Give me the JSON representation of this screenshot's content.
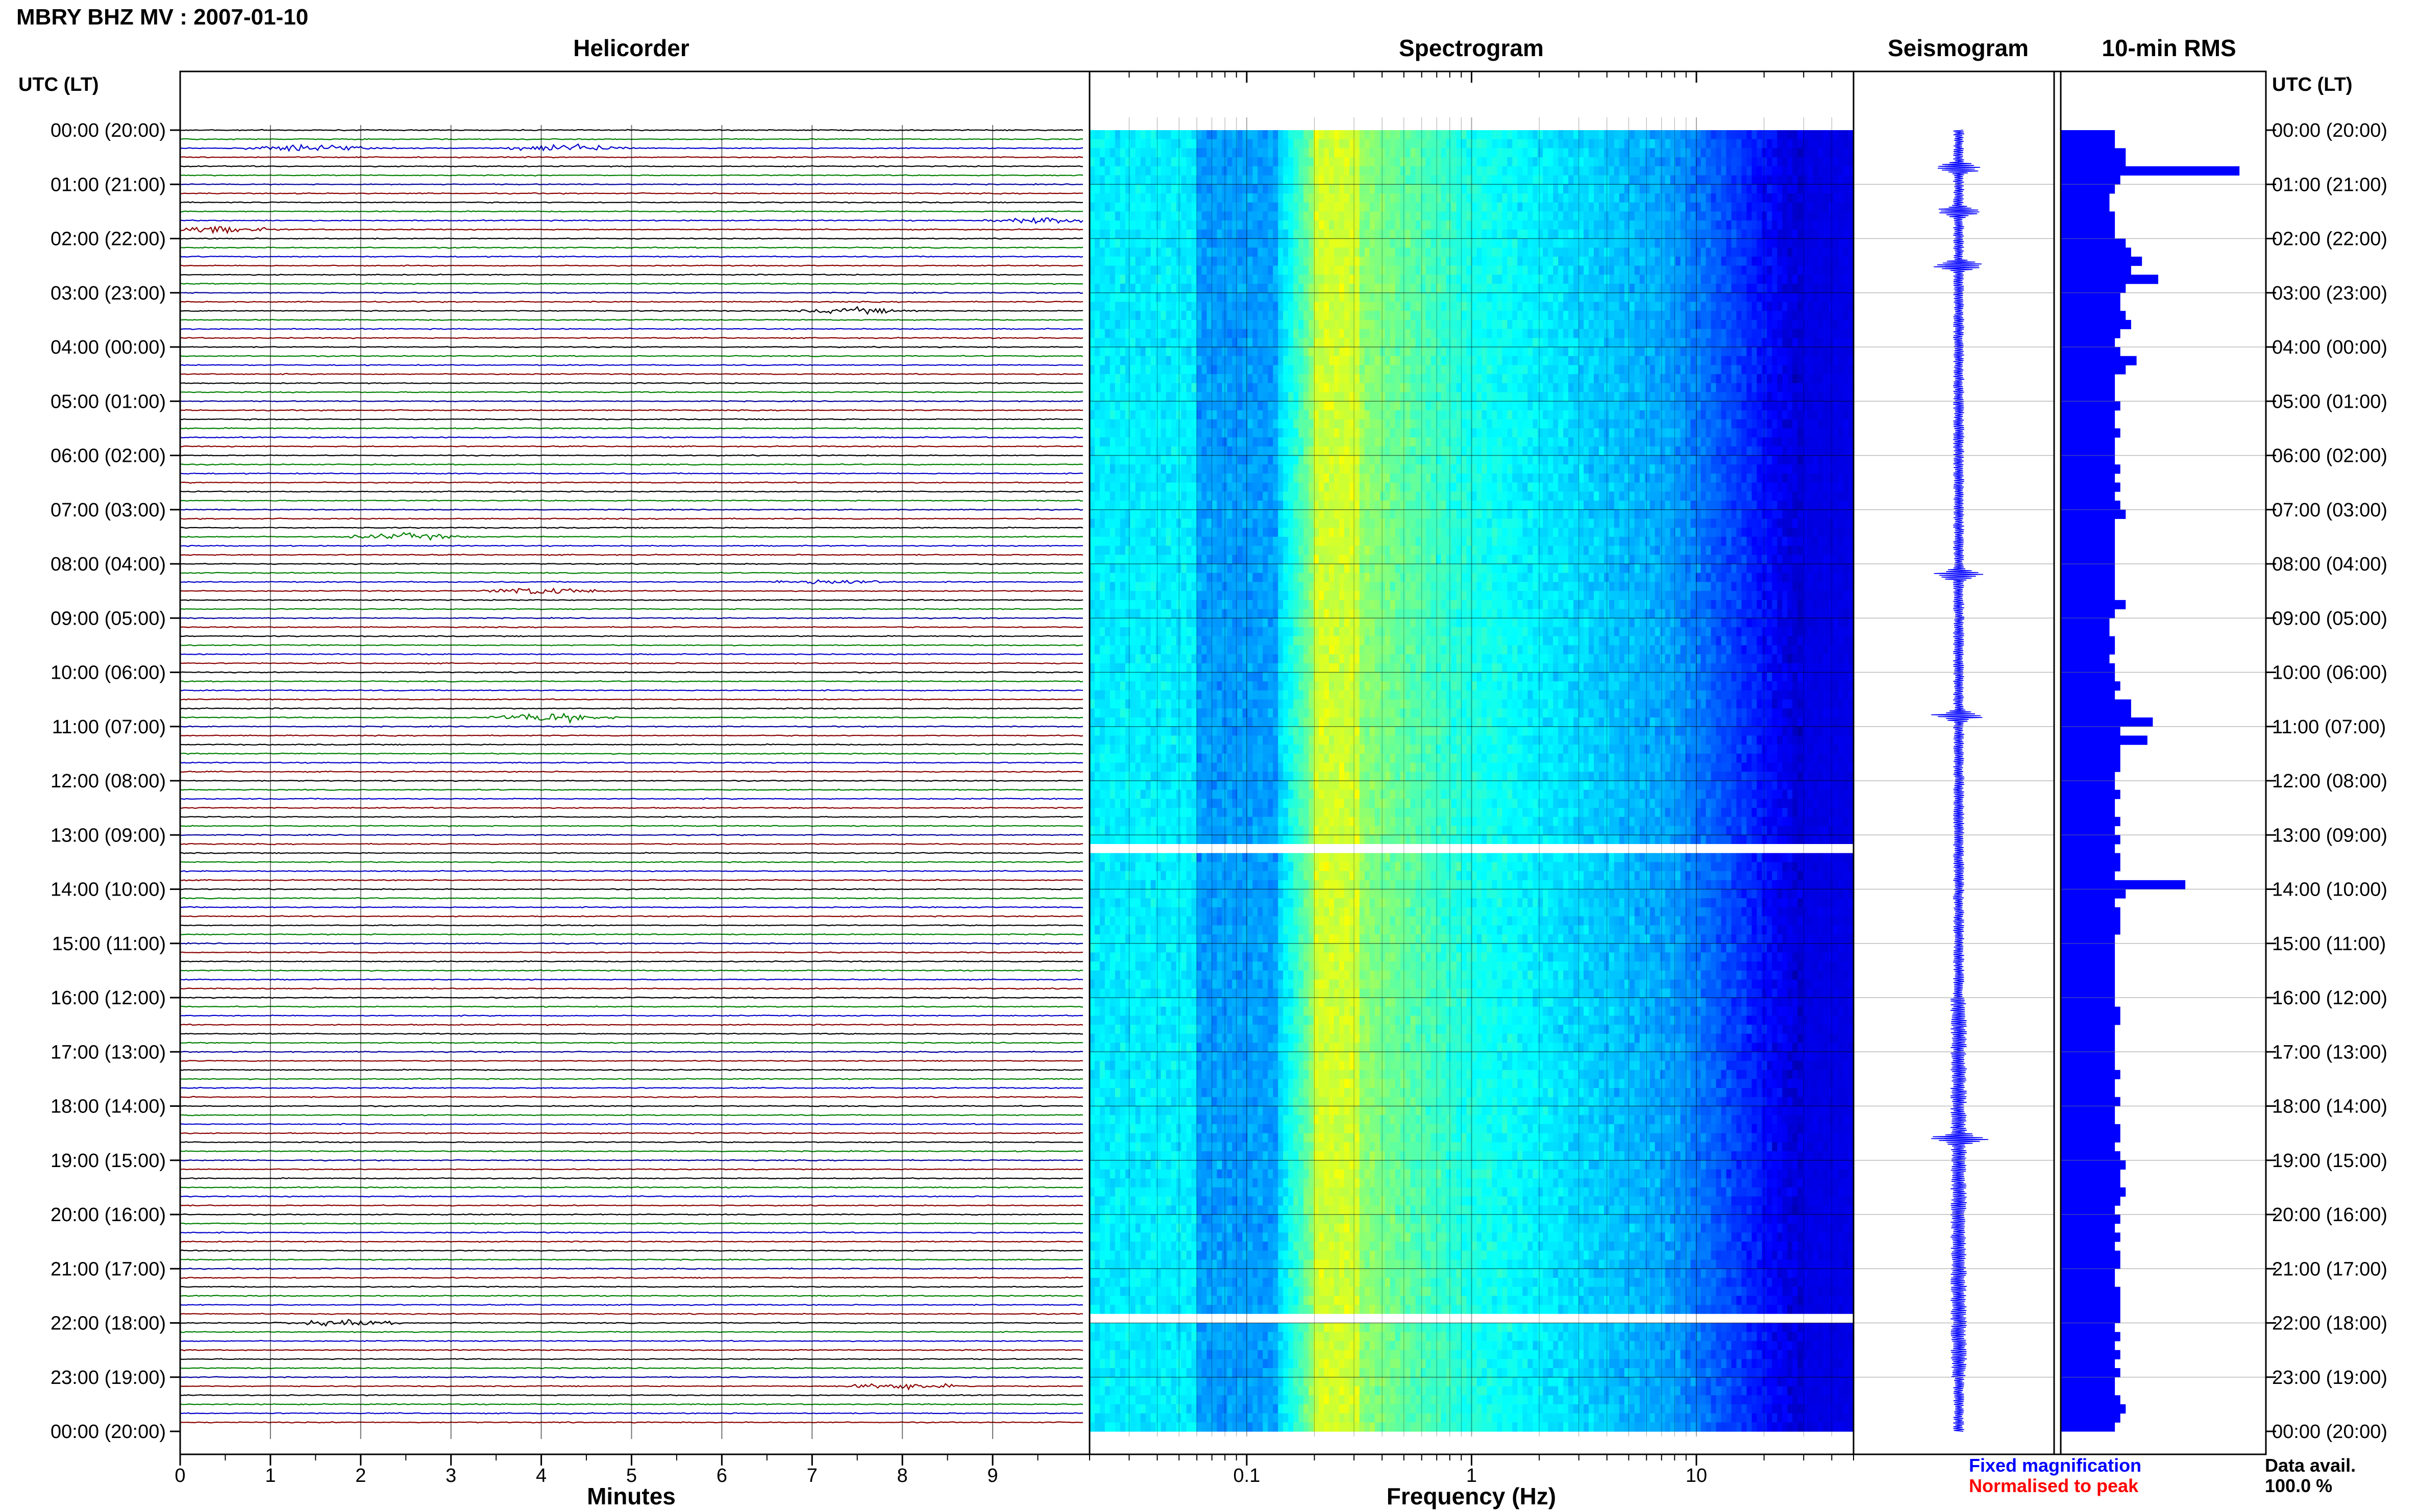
{
  "header": {
    "station_title": "MBRY BHZ MV : 2007-01-10",
    "time_axis_label": "UTC (LT)"
  },
  "panels": {
    "helicorder": "Helicorder",
    "spectrogram": "Spectrogram",
    "seismogram": "Seismogram",
    "rms": "10-min RMS"
  },
  "time_labels": [
    "00:00 (20:00)",
    "01:00 (21:00)",
    "02:00 (22:00)",
    "03:00 (23:00)",
    "04:00 (00:00)",
    "05:00 (01:00)",
    "06:00 (02:00)",
    "07:00 (03:00)",
    "08:00 (04:00)",
    "09:00 (05:00)",
    "10:00 (06:00)",
    "11:00 (07:00)",
    "12:00 (08:00)",
    "13:00 (09:00)",
    "14:00 (10:00)",
    "15:00 (11:00)",
    "16:00 (12:00)",
    "17:00 (13:00)",
    "18:00 (14:00)",
    "19:00 (15:00)",
    "20:00 (16:00)",
    "21:00 (17:00)",
    "22:00 (18:00)",
    "23:00 (19:00)",
    "00:00 (20:00)"
  ],
  "footer": {
    "fixed_label": "Fixed magnification",
    "normalised_label": "Normalised to peak",
    "data_avail_label": "Data avail.",
    "data_avail_value": "100.0 %"
  },
  "colors": {
    "trace_cycle": [
      "#000000",
      "#008000",
      "#0000cc",
      "#8b0000"
    ],
    "fixed": "#0000ff",
    "normalised": "#ff0000",
    "rms_bar": "#0000ff",
    "seismogram": "#0000ff"
  },
  "chart_data": [
    {
      "type": "helicorder",
      "title": "Helicorder",
      "xlabel": "Minutes",
      "x_ticks": [
        0,
        1,
        2,
        3,
        4,
        5,
        6,
        7,
        8,
        9
      ],
      "xlim": [
        0,
        10
      ],
      "lines_per_hour": 6,
      "total_lines": 144,
      "events": [
        {
          "hour": 0.33,
          "minute": 1.4,
          "amplitude": 3.2
        },
        {
          "hour": 0.33,
          "minute": 4.3,
          "amplitude": 3.5
        },
        {
          "hour": 1.83,
          "minute": 0.4,
          "amplitude": 2.6
        },
        {
          "hour": 1.67,
          "minute": 9.6,
          "amplitude": 2.4
        },
        {
          "hour": 3.33,
          "minute": 7.5,
          "amplitude": 2.2
        },
        {
          "hour": 7.5,
          "minute": 2.5,
          "amplitude": 2.6
        },
        {
          "hour": 8.33,
          "minute": 7.2,
          "amplitude": 2.2
        },
        {
          "hour": 8.5,
          "minute": 4.0,
          "amplitude": 3.0
        },
        {
          "hour": 10.83,
          "minute": 4.1,
          "amplitude": 3.8
        },
        {
          "hour": 22.0,
          "minute": 1.8,
          "amplitude": 2.3
        },
        {
          "hour": 23.17,
          "minute": 8.0,
          "amplitude": 2.6
        }
      ]
    },
    {
      "type": "heatmap",
      "title": "Spectrogram",
      "xlabel": "Frequency (Hz)",
      "x_scale": "log",
      "xlim": [
        0.02,
        50
      ],
      "x_tick_labels": [
        "0.1",
        "1",
        "10"
      ],
      "x_tick_values": [
        0.1,
        1,
        10
      ],
      "peak_band_hz": [
        0.2,
        0.3
      ],
      "data_gaps_hour": [
        13.2,
        21.8
      ]
    },
    {
      "type": "line",
      "title": "Seismogram",
      "events_hour": [
        0.7,
        1.5,
        2.5,
        8.2,
        10.8,
        18.6
      ]
    },
    {
      "type": "bar",
      "title": "10-min RMS",
      "orientation": "horizontal",
      "bin_minutes": 10,
      "values": [
        1.0,
        1.0,
        1.2,
        1.2,
        3.3,
        1.1,
        1.0,
        0.9,
        0.9,
        1.0,
        1.0,
        1.0,
        1.2,
        1.3,
        1.5,
        1.3,
        1.8,
        1.2,
        1.1,
        1.1,
        1.2,
        1.3,
        1.1,
        1.0,
        1.1,
        1.4,
        1.2,
        1.0,
        1.0,
        1.0,
        1.1,
        1.0,
        1.0,
        1.1,
        1.0,
        1.0,
        1.0,
        1.1,
        1.0,
        1.1,
        1.0,
        1.1,
        1.2,
        1.0,
        1.0,
        1.0,
        1.0,
        1.0,
        1.0,
        1.0,
        1.0,
        1.0,
        1.2,
        1.0,
        0.9,
        0.9,
        1.0,
        1.0,
        0.9,
        1.0,
        1.0,
        1.1,
        1.0,
        1.3,
        1.3,
        1.7,
        1.1,
        1.6,
        1.1,
        1.1,
        1.1,
        1.0,
        1.0,
        1.1,
        1.0,
        1.0,
        1.1,
        1.0,
        1.1,
        1.0,
        1.1,
        1.1,
        1.0,
        2.3,
        1.2,
        1.0,
        1.1,
        1.1,
        1.1,
        1.0,
        1.0,
        1.0,
        1.0,
        1.0,
        1.0,
        1.0,
        1.0,
        1.1,
        1.1,
        1.0,
        1.0,
        1.0,
        1.0,
        1.0,
        1.1,
        1.0,
        1.0,
        1.1,
        1.0,
        1.0,
        1.1,
        1.1,
        1.0,
        1.1,
        1.2,
        1.1,
        1.1,
        1.2,
        1.1,
        1.0,
        1.1,
        1.0,
        1.1,
        1.0,
        1.1,
        1.1,
        1.0,
        1.0,
        1.1,
        1.1,
        1.1,
        1.1,
        1.0,
        1.1,
        1.0,
        1.1,
        1.0,
        1.1,
        1.0,
        1.0,
        1.1,
        1.2,
        1.1,
        1.0
      ]
    }
  ]
}
